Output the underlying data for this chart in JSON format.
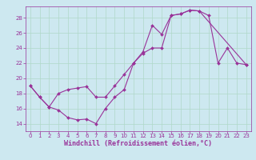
{
  "xlabel": "Windchill (Refroidissement éolien,°C)",
  "bg_color": "#cde8f0",
  "line_color": "#993399",
  "marker_color": "#993399",
  "xlim": [
    -0.5,
    23.5
  ],
  "ylim": [
    13.0,
    29.5
  ],
  "xticks": [
    0,
    1,
    2,
    3,
    4,
    5,
    6,
    7,
    8,
    9,
    10,
    11,
    12,
    13,
    14,
    15,
    16,
    17,
    18,
    19,
    20,
    21,
    22,
    23
  ],
  "yticks": [
    14,
    16,
    18,
    20,
    22,
    24,
    26,
    28
  ],
  "line1_x": [
    0,
    1,
    2,
    3,
    4,
    5,
    6,
    7,
    8,
    9,
    10,
    11,
    12,
    13,
    14,
    15,
    16,
    17,
    18,
    19,
    20,
    21,
    22,
    23
  ],
  "line1_y": [
    19.0,
    17.5,
    16.2,
    15.8,
    14.8,
    14.5,
    14.6,
    14.0,
    16.0,
    17.5,
    18.5,
    22.0,
    23.5,
    27.0,
    25.8,
    28.3,
    28.5,
    29.0,
    28.9,
    28.3,
    22.0,
    24.0,
    22.0,
    21.8
  ],
  "line2_x": [
    0,
    1,
    2,
    3,
    4,
    5,
    6,
    7,
    8,
    9,
    10,
    11,
    12,
    13,
    14,
    15,
    16,
    17,
    18,
    23
  ],
  "line2_y": [
    19.0,
    17.5,
    16.2,
    18.0,
    18.5,
    18.7,
    18.9,
    17.5,
    17.5,
    19.0,
    20.5,
    22.0,
    23.3,
    24.0,
    24.0,
    28.3,
    28.5,
    29.0,
    28.9,
    21.8
  ],
  "grid_color": "#b0d8c8",
  "font_color": "#993399",
  "tick_fontsize": 5.0,
  "xlabel_fontsize": 6.0,
  "linewidth": 0.8,
  "markersize": 2.0
}
